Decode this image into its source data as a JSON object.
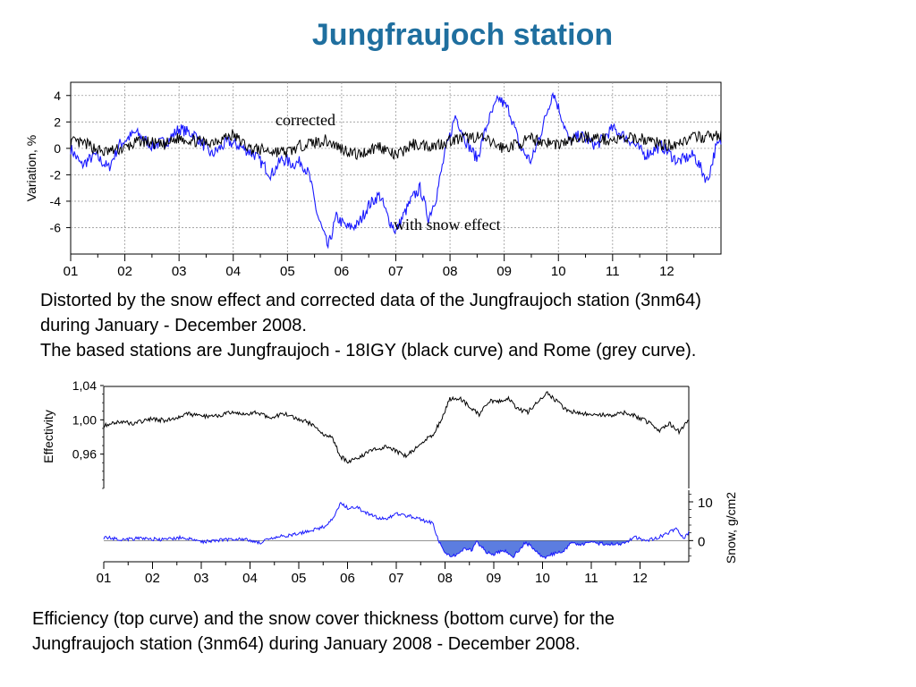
{
  "slide": {
    "title": "Jungfraujoch station",
    "caption1": [
      "Distorted by the snow effect and corrected data of the Jungfraujoch station (3nm64)",
      "during January - December 2008.",
      "The based stations are Jungfraujoch - 18IGY (black curve) and Rome (grey curve)."
    ],
    "caption2": [
      "Efficiency (top curve) and the snow cover thickness (bottom curve) for the",
      "Jungfraujoch station (3nm64) during January 2008 - December 2008."
    ]
  },
  "chart_data": [
    {
      "type": "line",
      "ylabel": "Variation, %",
      "xlim": [
        0,
        12
      ],
      "ylim": [
        -8,
        5
      ],
      "yticks": [
        4,
        2,
        0,
        -2,
        -4,
        -6
      ],
      "xticklabels": [
        "01",
        "02",
        "03",
        "04",
        "05",
        "06",
        "07",
        "08",
        "09",
        "10",
        "11",
        "12"
      ],
      "grid": true,
      "annotations": [
        "corrected",
        "with snow effect"
      ],
      "colors": {
        "corrected": "#000000",
        "with_snow": "#1a1aff"
      },
      "series": [
        {
          "name": "corrected",
          "x": [
            0,
            0.3,
            0.6,
            1.0,
            1.3,
            1.7,
            2.0,
            2.5,
            3.0,
            3.3,
            3.7,
            4.0,
            4.3,
            4.7,
            5.0,
            5.3,
            5.7,
            6.0,
            6.3,
            6.7,
            7.0,
            7.5,
            8.0,
            8.5,
            9.0,
            9.5,
            10.0,
            10.5,
            11.0,
            11.5,
            12.0
          ],
          "y": [
            0.5,
            0.3,
            -0.3,
            0.0,
            0.6,
            0.2,
            0.8,
            0.4,
            1.0,
            0.0,
            -0.2,
            -0.3,
            0.3,
            0.6,
            0.0,
            -0.5,
            0.2,
            -0.6,
            0.3,
            0.2,
            0.6,
            0.9,
            0.0,
            0.7,
            0.3,
            0.9,
            0.6,
            0.8,
            0.2,
            0.8,
            1.0
          ]
        },
        {
          "name": "with snow effect",
          "x": [
            0,
            0.2,
            0.45,
            0.7,
            0.9,
            1.2,
            1.5,
            1.8,
            2.0,
            2.3,
            2.6,
            2.9,
            3.1,
            3.4,
            3.7,
            3.9,
            4.1,
            4.25,
            4.4,
            4.55,
            4.75,
            4.9,
            5.1,
            5.3,
            5.5,
            5.7,
            5.85,
            6.0,
            6.15,
            6.3,
            6.45,
            6.6,
            6.75,
            6.9,
            7.1,
            7.3,
            7.5,
            7.7,
            7.9,
            8.1,
            8.3,
            8.5,
            8.7,
            8.9,
            9.05,
            9.2,
            9.4,
            9.7,
            10.0,
            10.3,
            10.6,
            10.9,
            11.2,
            11.5,
            11.75,
            11.9,
            12.0
          ],
          "y": [
            0.0,
            -1.3,
            -0.5,
            -1.5,
            0.3,
            1.2,
            0.2,
            0.6,
            1.5,
            1.0,
            -0.5,
            0.5,
            0.2,
            -0.5,
            -2.0,
            -0.8,
            -1.2,
            -1.0,
            -2.0,
            -5.0,
            -7.5,
            -5.2,
            -6.0,
            -5.8,
            -4.3,
            -3.5,
            -5.2,
            -6.3,
            -5.0,
            -3.8,
            -3.0,
            -5.3,
            -3.6,
            -0.5,
            2.5,
            0.5,
            -0.8,
            2.0,
            3.8,
            2.8,
            0.0,
            -1.0,
            1.5,
            4.3,
            2.5,
            0.5,
            1.0,
            0.2,
            1.5,
            0.7,
            -0.5,
            0.2,
            -1.0,
            -0.5,
            -2.5,
            0.0,
            0.5
          ]
        }
      ]
    },
    {
      "type": "line",
      "ylabel": "Effectivity",
      "y2label": "Snow, g/cm2",
      "xlim": [
        0,
        12
      ],
      "ylim": [
        0.92,
        1.04
      ],
      "yticks": [
        1.04,
        1.0,
        0.96
      ],
      "yticklabels": [
        "1,04",
        "1,00",
        "0,96"
      ],
      "y2ticks": [
        10,
        0
      ],
      "y2ticklabels": [
        "10",
        "0"
      ],
      "y2lim": [
        -5,
        13
      ],
      "xticklabels": [
        "01",
        "02",
        "03",
        "04",
        "05",
        "06",
        "07",
        "08",
        "09",
        "10",
        "11",
        "12"
      ],
      "colors": {
        "effectivity": "#000000",
        "snow": "#1a1aff",
        "snow_fill": "#5c7de0"
      },
      "series": [
        {
          "name": "Effectivity",
          "x": [
            0,
            0.3,
            0.6,
            1.0,
            1.3,
            1.7,
            2.0,
            2.3,
            2.6,
            2.9,
            3.1,
            3.4,
            3.7,
            3.9,
            4.1,
            4.3,
            4.5,
            4.7,
            4.85,
            5.0,
            5.2,
            5.4,
            5.6,
            5.8,
            6.0,
            6.2,
            6.4,
            6.55,
            6.75,
            6.9,
            7.1,
            7.3,
            7.5,
            7.7,
            7.9,
            8.1,
            8.3,
            8.5,
            8.7,
            8.9,
            9.1,
            9.3,
            9.5,
            9.8,
            10.1,
            10.4,
            10.7,
            11.0,
            11.2,
            11.4,
            11.6,
            11.8,
            12.0
          ],
          "y": [
            0.993,
            0.998,
            0.996,
            1.001,
            0.999,
            1.007,
            1.004,
            1.005,
            1.008,
            1.006,
            1.009,
            1.003,
            1.007,
            1.002,
            0.999,
            0.994,
            0.984,
            0.978,
            0.957,
            0.952,
            0.955,
            0.962,
            0.966,
            0.969,
            0.963,
            0.958,
            0.967,
            0.975,
            0.982,
            0.998,
            1.024,
            1.026,
            1.015,
            1.006,
            1.022,
            1.021,
            1.025,
            1.012,
            1.009,
            1.022,
            1.032,
            1.021,
            1.011,
            1.007,
            1.006,
            1.005,
            1.009,
            1.002,
            0.996,
            0.988,
            0.996,
            0.986,
            0.999
          ]
        },
        {
          "name": "Snow",
          "x": [
            0,
            0.4,
            0.8,
            1.2,
            1.6,
            2.0,
            2.4,
            2.8,
            3.2,
            3.6,
            3.9,
            4.2,
            4.5,
            4.7,
            4.85,
            5.0,
            5.2,
            5.4,
            5.6,
            5.8,
            6.0,
            6.2,
            6.4,
            6.6,
            6.75,
            6.85,
            7.0,
            7.2,
            7.4,
            7.55,
            7.65,
            7.85,
            8.0,
            8.2,
            8.4,
            8.55,
            8.65,
            8.8,
            9.0,
            9.2,
            9.4,
            9.6,
            9.75,
            10.0,
            10.3,
            10.6,
            10.9,
            11.1,
            11.3,
            11.5,
            11.75,
            11.9,
            12.0
          ],
          "y": [
            0.8,
            0.3,
            0.6,
            0.2,
            0.8,
            -0.3,
            0.2,
            0.5,
            -0.5,
            1.0,
            1.5,
            2.5,
            3.5,
            5.5,
            9.5,
            8.5,
            8.5,
            7.0,
            6.0,
            5.5,
            7.0,
            6.5,
            6.0,
            5.0,
            4.5,
            0.5,
            -3.5,
            -4.0,
            -2.0,
            -2.5,
            -0.3,
            -3.0,
            -3.5,
            -2.5,
            -4.0,
            -2.0,
            -0.5,
            -1.8,
            -4.5,
            -3.5,
            -3.0,
            -0.5,
            -1.0,
            -0.6,
            -0.8,
            -1.0,
            0.8,
            0.0,
            0.5,
            1.5,
            3.0,
            0.5,
            2.0
          ]
        }
      ]
    }
  ]
}
